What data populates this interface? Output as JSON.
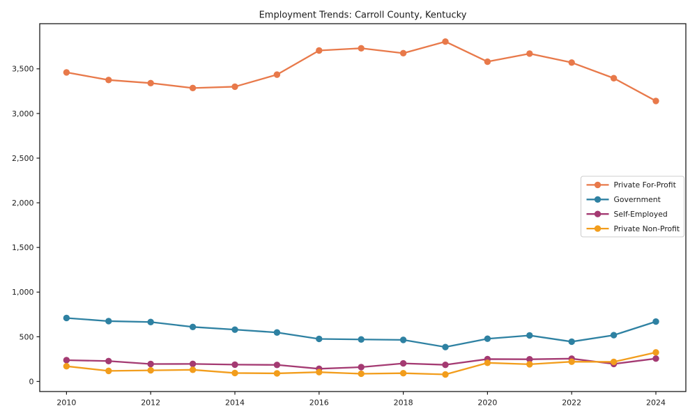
{
  "figure": {
    "background": "#ffffff",
    "axis_color": "#1a1a1a",
    "legend": {
      "border_color": "#cccccc",
      "entries": [
        "Private For-Profit",
        "Government",
        "Self-Employed",
        "Private Non-Profit"
      ]
    }
  },
  "chart_data": {
    "type": "line",
    "title": "Employment Trends: Carroll County, Kentucky",
    "xlabel": "",
    "ylabel": "",
    "x": [
      2010,
      2011,
      2012,
      2013,
      2014,
      2015,
      2016,
      2017,
      2018,
      2019,
      2020,
      2021,
      2022,
      2023,
      2024
    ],
    "series": [
      {
        "name": "Private For-Profit",
        "color": "#e8794a",
        "marker": "o",
        "values": [
          3460,
          3375,
          3340,
          3285,
          3300,
          3435,
          3705,
          3730,
          3675,
          3805,
          3580,
          3670,
          3570,
          3395,
          3140
        ]
      },
      {
        "name": "Government",
        "color": "#2e81a2",
        "marker": "o",
        "values": [
          710,
          675,
          665,
          610,
          580,
          548,
          476,
          470,
          465,
          385,
          478,
          515,
          445,
          518,
          670
        ]
      },
      {
        "name": "Self-Employed",
        "color": "#a43a72",
        "marker": "o",
        "values": [
          238,
          228,
          195,
          196,
          188,
          185,
          142,
          160,
          202,
          186,
          250,
          248,
          255,
          196,
          256
        ]
      },
      {
        "name": "Private Non-Profit",
        "color": "#f29d1c",
        "marker": "o",
        "values": [
          170,
          118,
          124,
          130,
          94,
          90,
          104,
          86,
          92,
          78,
          208,
          192,
          221,
          219,
          325
        ]
      }
    ],
    "xticks": [
      2010,
      2012,
      2014,
      2016,
      2018,
      2020,
      2022,
      2024
    ],
    "xtick_labels": [
      "2010",
      "2012",
      "2014",
      "2016",
      "2018",
      "2020",
      "2022",
      "2024"
    ],
    "yticks": [
      0,
      500,
      1000,
      1500,
      2000,
      2500,
      3000,
      3500
    ],
    "ytick_labels": [
      "0",
      "500",
      "1,000",
      "1,500",
      "2,000",
      "2,500",
      "3,000",
      "3,500"
    ],
    "ylim": [
      0,
      4005
    ],
    "xlim": [
      2009.4,
      2024.7
    ],
    "grid": false,
    "legend_position": "center right"
  }
}
